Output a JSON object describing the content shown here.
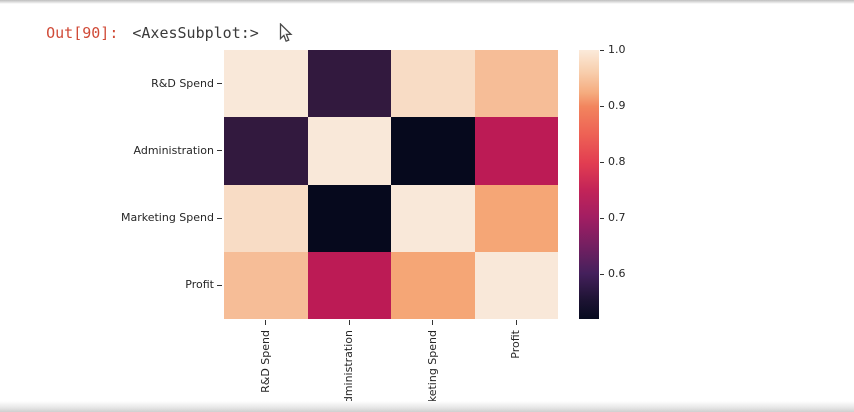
{
  "console": {
    "out_prompt": "Out[90]:",
    "out_value": "<AxesSubplot:>",
    "prompt_color": "#d04a37"
  },
  "chart_data": {
    "type": "heatmap",
    "title": "",
    "xlabel": "",
    "ylabel": "",
    "categories": [
      "R&D Spend",
      "Administration",
      "Marketing Spend",
      "Profit"
    ],
    "matrix": [
      [
        1.0,
        0.58,
        0.97,
        0.94
      ],
      [
        0.58,
        1.0,
        0.52,
        0.72
      ],
      [
        0.97,
        0.52,
        1.0,
        0.92
      ],
      [
        0.94,
        0.72,
        0.92,
        1.0
      ]
    ],
    "cell_colors": [
      [
        "#f9e8d9",
        "#32193e",
        "#f8dcc5",
        "#f6bd97"
      ],
      [
        "#32193e",
        "#f9e8d9",
        "#06091d",
        "#bc1b55"
      ],
      [
        "#f8dcc5",
        "#06091d",
        "#f9e8d9",
        "#f5a676"
      ],
      [
        "#f6bd97",
        "#bc1b55",
        "#f5a676",
        "#f9e8d9"
      ]
    ],
    "colormap": "rocket",
    "grid": false,
    "legend_position": "right-colorbar",
    "colorbar": {
      "tick_labels": [
        "1.0",
        "0.9",
        "0.8",
        "0.7",
        "0.6"
      ],
      "tick_values": [
        1.0,
        0.9,
        0.8,
        0.7,
        0.6
      ],
      "vmin": 0.52,
      "vmax": 1.0
    }
  }
}
